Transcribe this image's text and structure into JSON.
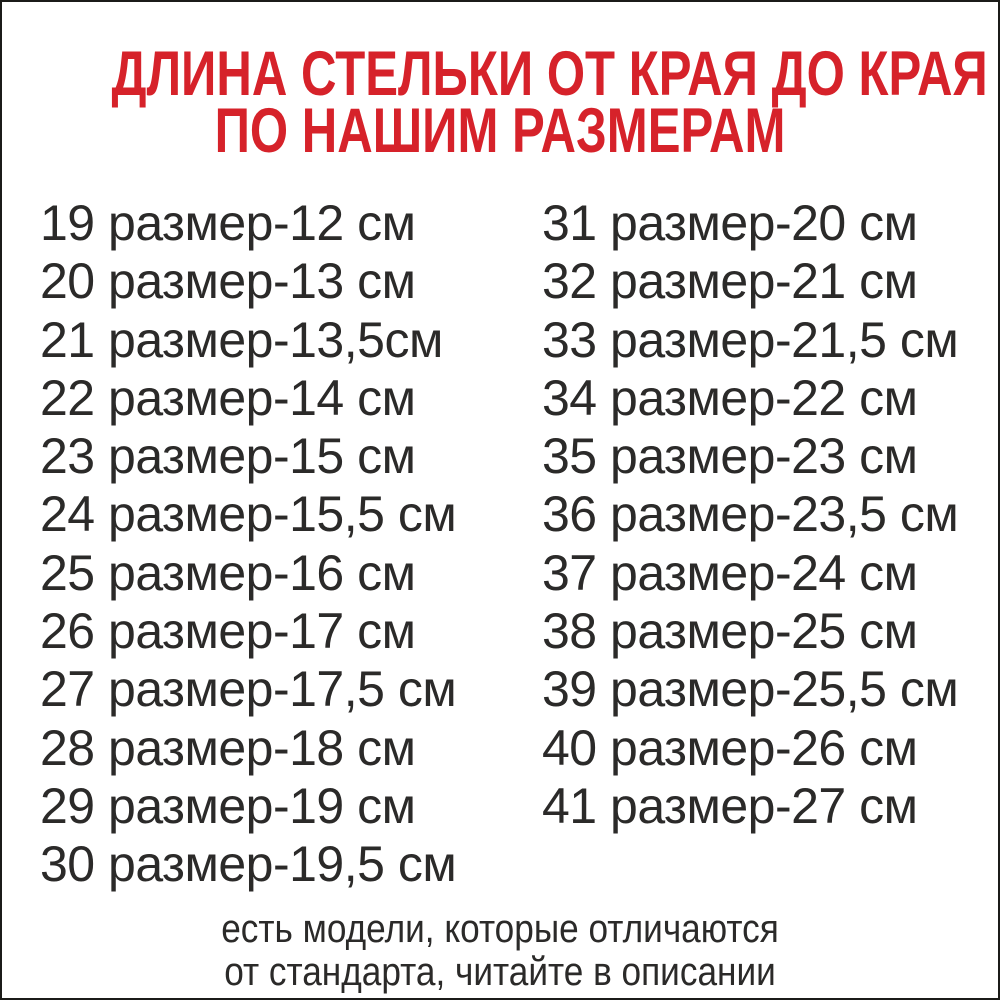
{
  "header": {
    "title_line1": "ДЛИНА СТЕЛЬКИ ОТ КРАЯ ДО КРАЯ",
    "title_line2": "ПО НАШИМ РАЗМЕРАМ"
  },
  "size_chart": {
    "left_column": [
      "19 размер-12 см",
      "20 размер-13 см",
      "21 размер-13,5см",
      "22 размер-14 см",
      "23 размер-15 см",
      "24 размер-15,5 см",
      "25 размер-16 см",
      "26 размер-17 см",
      "27 размер-17,5 см",
      "28 размер-18 см",
      "29 размер-19 см",
      "30 размер-19,5 см"
    ],
    "right_column": [
      "31 размер-20 см",
      "32 размер-21 см",
      "33 размер-21,5 см",
      "34 размер-22 см",
      "35 размер-23 см",
      "36 размер-23,5 см",
      "37 размер-24 см",
      "38 размер-25 см",
      "39 размер-25,5 см",
      "40 размер-26 см",
      "41 размер-27 см"
    ]
  },
  "footnote": {
    "line1": "есть модели, которые отличаются",
    "line2": "от стандарта, читайте в описании"
  },
  "colors": {
    "red": "#d6222a",
    "text": "#2b2a29",
    "border": "#1b1b19",
    "bg": "#ffffff"
  }
}
